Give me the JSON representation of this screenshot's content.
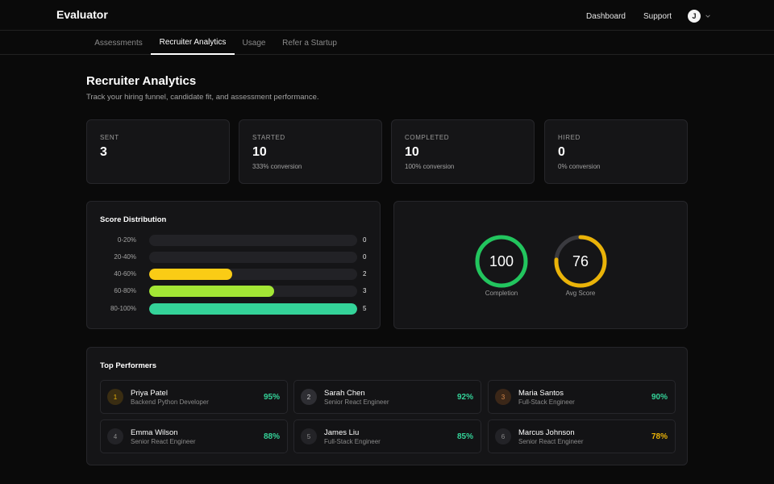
{
  "app": {
    "brand": "Evaluator"
  },
  "topnav": {
    "dashboard": "Dashboard",
    "support": "Support",
    "avatar_initial": "J"
  },
  "tabs": [
    {
      "label": "Assessments"
    },
    {
      "label": "Recruiter Analytics",
      "active": true
    },
    {
      "label": "Usage"
    },
    {
      "label": "Refer a Startup"
    }
  ],
  "page": {
    "title": "Recruiter Analytics",
    "subtitle": "Track your hiring funnel, candidate fit, and assessment performance."
  },
  "stats": [
    {
      "label": "SENT",
      "value": "3",
      "sub": ""
    },
    {
      "label": "STARTED",
      "value": "10",
      "sub": "333% conversion"
    },
    {
      "label": "COMPLETED",
      "value": "10",
      "sub": "100% conversion"
    },
    {
      "label": "HIRED",
      "value": "0",
      "sub": "0% conversion"
    }
  ],
  "distribution": {
    "title": "Score Distribution",
    "max": 5,
    "rows": [
      {
        "label": "0-20%",
        "count": 0,
        "color": "#ef4444"
      },
      {
        "label": "20-40%",
        "count": 0,
        "color": "#f97316"
      },
      {
        "label": "40-60%",
        "count": 2,
        "color": "#facc15"
      },
      {
        "label": "60-80%",
        "count": 3,
        "color": "#a3e635"
      },
      {
        "label": "80-100%",
        "count": 5,
        "color": "#34d399"
      }
    ]
  },
  "gauges": [
    {
      "value": "100",
      "fraction": 1.0,
      "label": "Completion",
      "color": "#22c55e"
    },
    {
      "value": "76",
      "fraction": 0.76,
      "label": "Avg Score",
      "color": "#eab308"
    }
  ],
  "performers": {
    "title": "Top Performers",
    "items": [
      {
        "rank": "1",
        "name": "Priya Patel",
        "role": "Backend Python Developer",
        "score": "95%",
        "score_color": "#34d399",
        "rank_bg": "#3a2d12",
        "rank_fg": "#eab308"
      },
      {
        "rank": "2",
        "name": "Sarah Chen",
        "role": "Senior React Engineer",
        "score": "92%",
        "score_color": "#34d399",
        "rank_bg": "#2e2e33",
        "rank_fg": "#d4d4d4"
      },
      {
        "rank": "3",
        "name": "Maria Santos",
        "role": "Full-Stack Engineer",
        "score": "90%",
        "score_color": "#34d399",
        "rank_bg": "#3b2718",
        "rank_fg": "#d6884a"
      },
      {
        "rank": "4",
        "name": "Emma Wilson",
        "role": "Senior React Engineer",
        "score": "88%",
        "score_color": "#34d399",
        "rank_bg": "#232327",
        "rank_fg": "#8a8a8a"
      },
      {
        "rank": "5",
        "name": "James Liu",
        "role": "Full-Stack Engineer",
        "score": "85%",
        "score_color": "#34d399",
        "rank_bg": "#232327",
        "rank_fg": "#8a8a8a"
      },
      {
        "rank": "6",
        "name": "Marcus Johnson",
        "role": "Senior React Engineer",
        "score": "78%",
        "score_color": "#eab308",
        "rank_bg": "#232327",
        "rank_fg": "#8a8a8a"
      }
    ]
  }
}
